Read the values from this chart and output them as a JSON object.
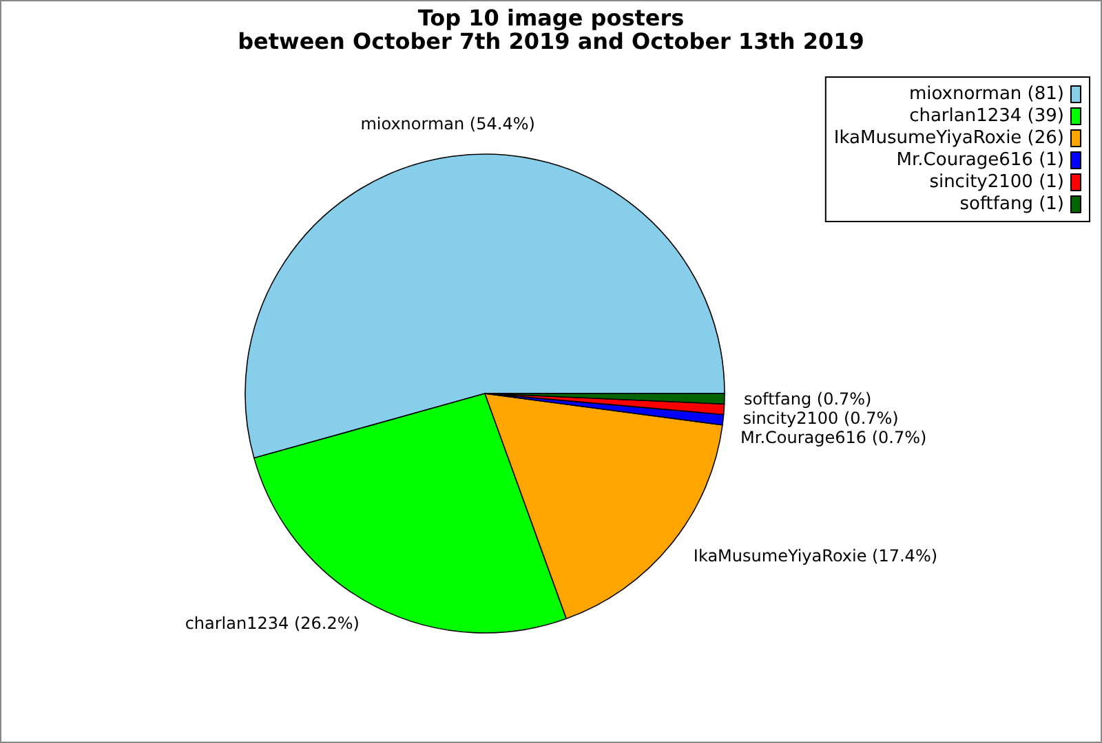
{
  "chart_data": {
    "type": "pie",
    "title": "Top 10 image posters",
    "subtitle": "between October 7th 2019 and October 13th 2019",
    "categories": [
      "mioxnorman (81)",
      "charlan1234 (39)",
      "IkaMusumeYiyaRoxie (26)",
      "Mr.Courage616 (1)",
      "sincity2100 (1)",
      "softfang (1)"
    ],
    "values": [
      54.4,
      26.2,
      17.4,
      0.7,
      0.7,
      0.7
    ],
    "value_labels": [
      "mioxnorman (54.4%)",
      "charlan1234 (26.2%)",
      "IkaMusumeYiyaRoxie (17.4%)",
      "Mr.Courage616 (0.7%)",
      "sincity2100 (0.7%)",
      "softfang (0.7%)"
    ],
    "colors": [
      "#87ceeb",
      "#00ff00",
      "#ffa500",
      "#0000ff",
      "#ff0000",
      "#006400"
    ],
    "legend": "top right"
  }
}
